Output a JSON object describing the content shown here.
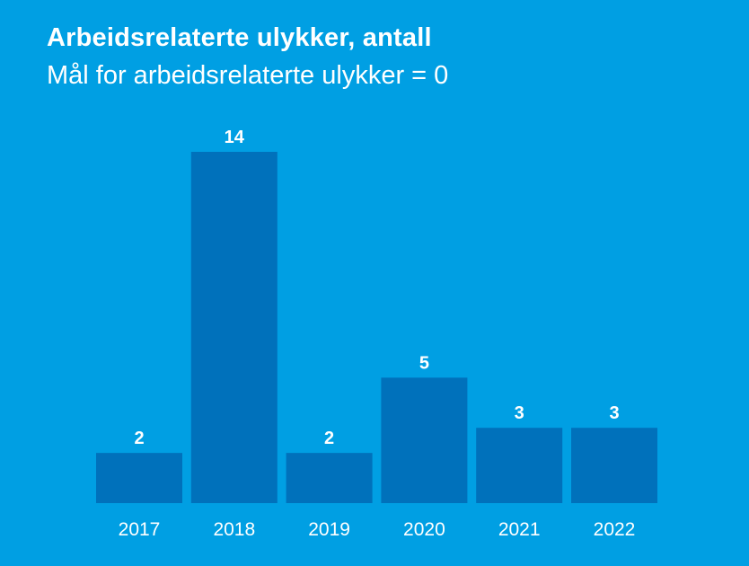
{
  "chart_data": {
    "type": "bar",
    "title": "Arbeidsrelaterte ulykker, antall",
    "subtitle": "Mål for arbeidsrelaterte ulykker = 0",
    "categories": [
      "2017",
      "2018",
      "2019",
      "2020",
      "2021",
      "2022"
    ],
    "values": [
      2,
      14,
      2,
      5,
      3,
      3
    ],
    "value_labels": [
      "2",
      "14",
      "2",
      "5",
      "3",
      "3"
    ],
    "xlabel": "",
    "ylabel": "",
    "ylim": [
      0,
      14
    ],
    "grid": false,
    "legend": "none",
    "colors": {
      "background": "#009fe3",
      "bar": "#0071bb",
      "text": "#ffffff"
    }
  }
}
